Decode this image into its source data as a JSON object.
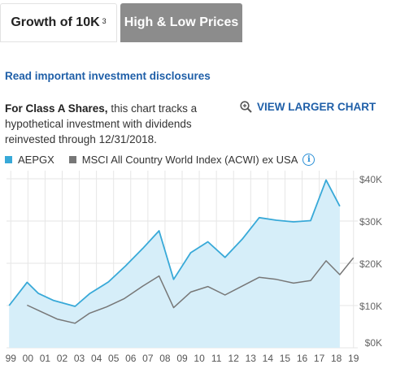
{
  "tabs": [
    {
      "label": "Growth of 10K",
      "sup": "3"
    },
    {
      "label": "High & Low Prices"
    }
  ],
  "disclosure_link": "Read important investment disclosures",
  "description": {
    "bold": "For Class A Shares,",
    "rest": " this chart tracks a hypothetical investment with dividends reinvested through 12/31/2018."
  },
  "view_larger": "VIEW LARGER CHART",
  "legend": [
    {
      "label": "AEPGX",
      "color": "#38a9d8"
    },
    {
      "label": "MSCI All Country World Index (ACWI) ex USA",
      "color": "#777777"
    }
  ],
  "info_icon": "i",
  "colors": {
    "fund_fill": "#d6eef9",
    "fund_line": "#38a9d8",
    "index_line": "#777777",
    "grid": "#e6e6e6"
  },
  "chart_data": {
    "type": "area",
    "x": [
      "99",
      "00",
      "01",
      "02",
      "03",
      "04",
      "05",
      "06",
      "07",
      "08",
      "09",
      "10",
      "11",
      "12",
      "13",
      "14",
      "15",
      "16",
      "17",
      "18",
      "19"
    ],
    "series": [
      {
        "name": "AEPGX",
        "points": [
          [
            1998.9,
            10000
          ],
          [
            1999.95,
            15500
          ],
          [
            2000.6,
            12900
          ],
          [
            2001.5,
            11200
          ],
          [
            2002.75,
            9800
          ],
          [
            2003.6,
            12800
          ],
          [
            2004.7,
            15600
          ],
          [
            2005.7,
            19400
          ],
          [
            2006.7,
            23500
          ],
          [
            2007.65,
            27700
          ],
          [
            2008.5,
            16200
          ],
          [
            2009.5,
            22500
          ],
          [
            2010.5,
            25100
          ],
          [
            2011.5,
            21400
          ],
          [
            2012.5,
            25700
          ],
          [
            2013.5,
            30800
          ],
          [
            2014.5,
            30200
          ],
          [
            2015.5,
            29800
          ],
          [
            2016.5,
            30100
          ],
          [
            2017.4,
            39700
          ],
          [
            2018.2,
            33500
          ]
        ]
      },
      {
        "name": "MSCI All Country World Index (ACWI) ex USA",
        "points": [
          [
            1999.95,
            10100
          ],
          [
            2000.8,
            8500
          ],
          [
            2001.7,
            6800
          ],
          [
            2002.75,
            5800
          ],
          [
            2003.6,
            8200
          ],
          [
            2004.6,
            9700
          ],
          [
            2005.6,
            11600
          ],
          [
            2006.7,
            14600
          ],
          [
            2007.65,
            17000
          ],
          [
            2008.5,
            9500
          ],
          [
            2009.5,
            13200
          ],
          [
            2010.5,
            14500
          ],
          [
            2011.5,
            12500
          ],
          [
            2012.5,
            14600
          ],
          [
            2013.5,
            16700
          ],
          [
            2014.5,
            16200
          ],
          [
            2015.5,
            15300
          ],
          [
            2016.5,
            15900
          ],
          [
            2017.4,
            20600
          ],
          [
            2018.2,
            17300
          ],
          [
            2019.0,
            21300
          ]
        ]
      }
    ],
    "y_ticks": [
      "$0K",
      "$10K",
      "$20K",
      "$30K",
      "$40K"
    ],
    "ylim": [
      0,
      40000
    ],
    "xlim": [
      1998.75,
      2019.25
    ],
    "grid": true,
    "legend_position": "top-left"
  }
}
